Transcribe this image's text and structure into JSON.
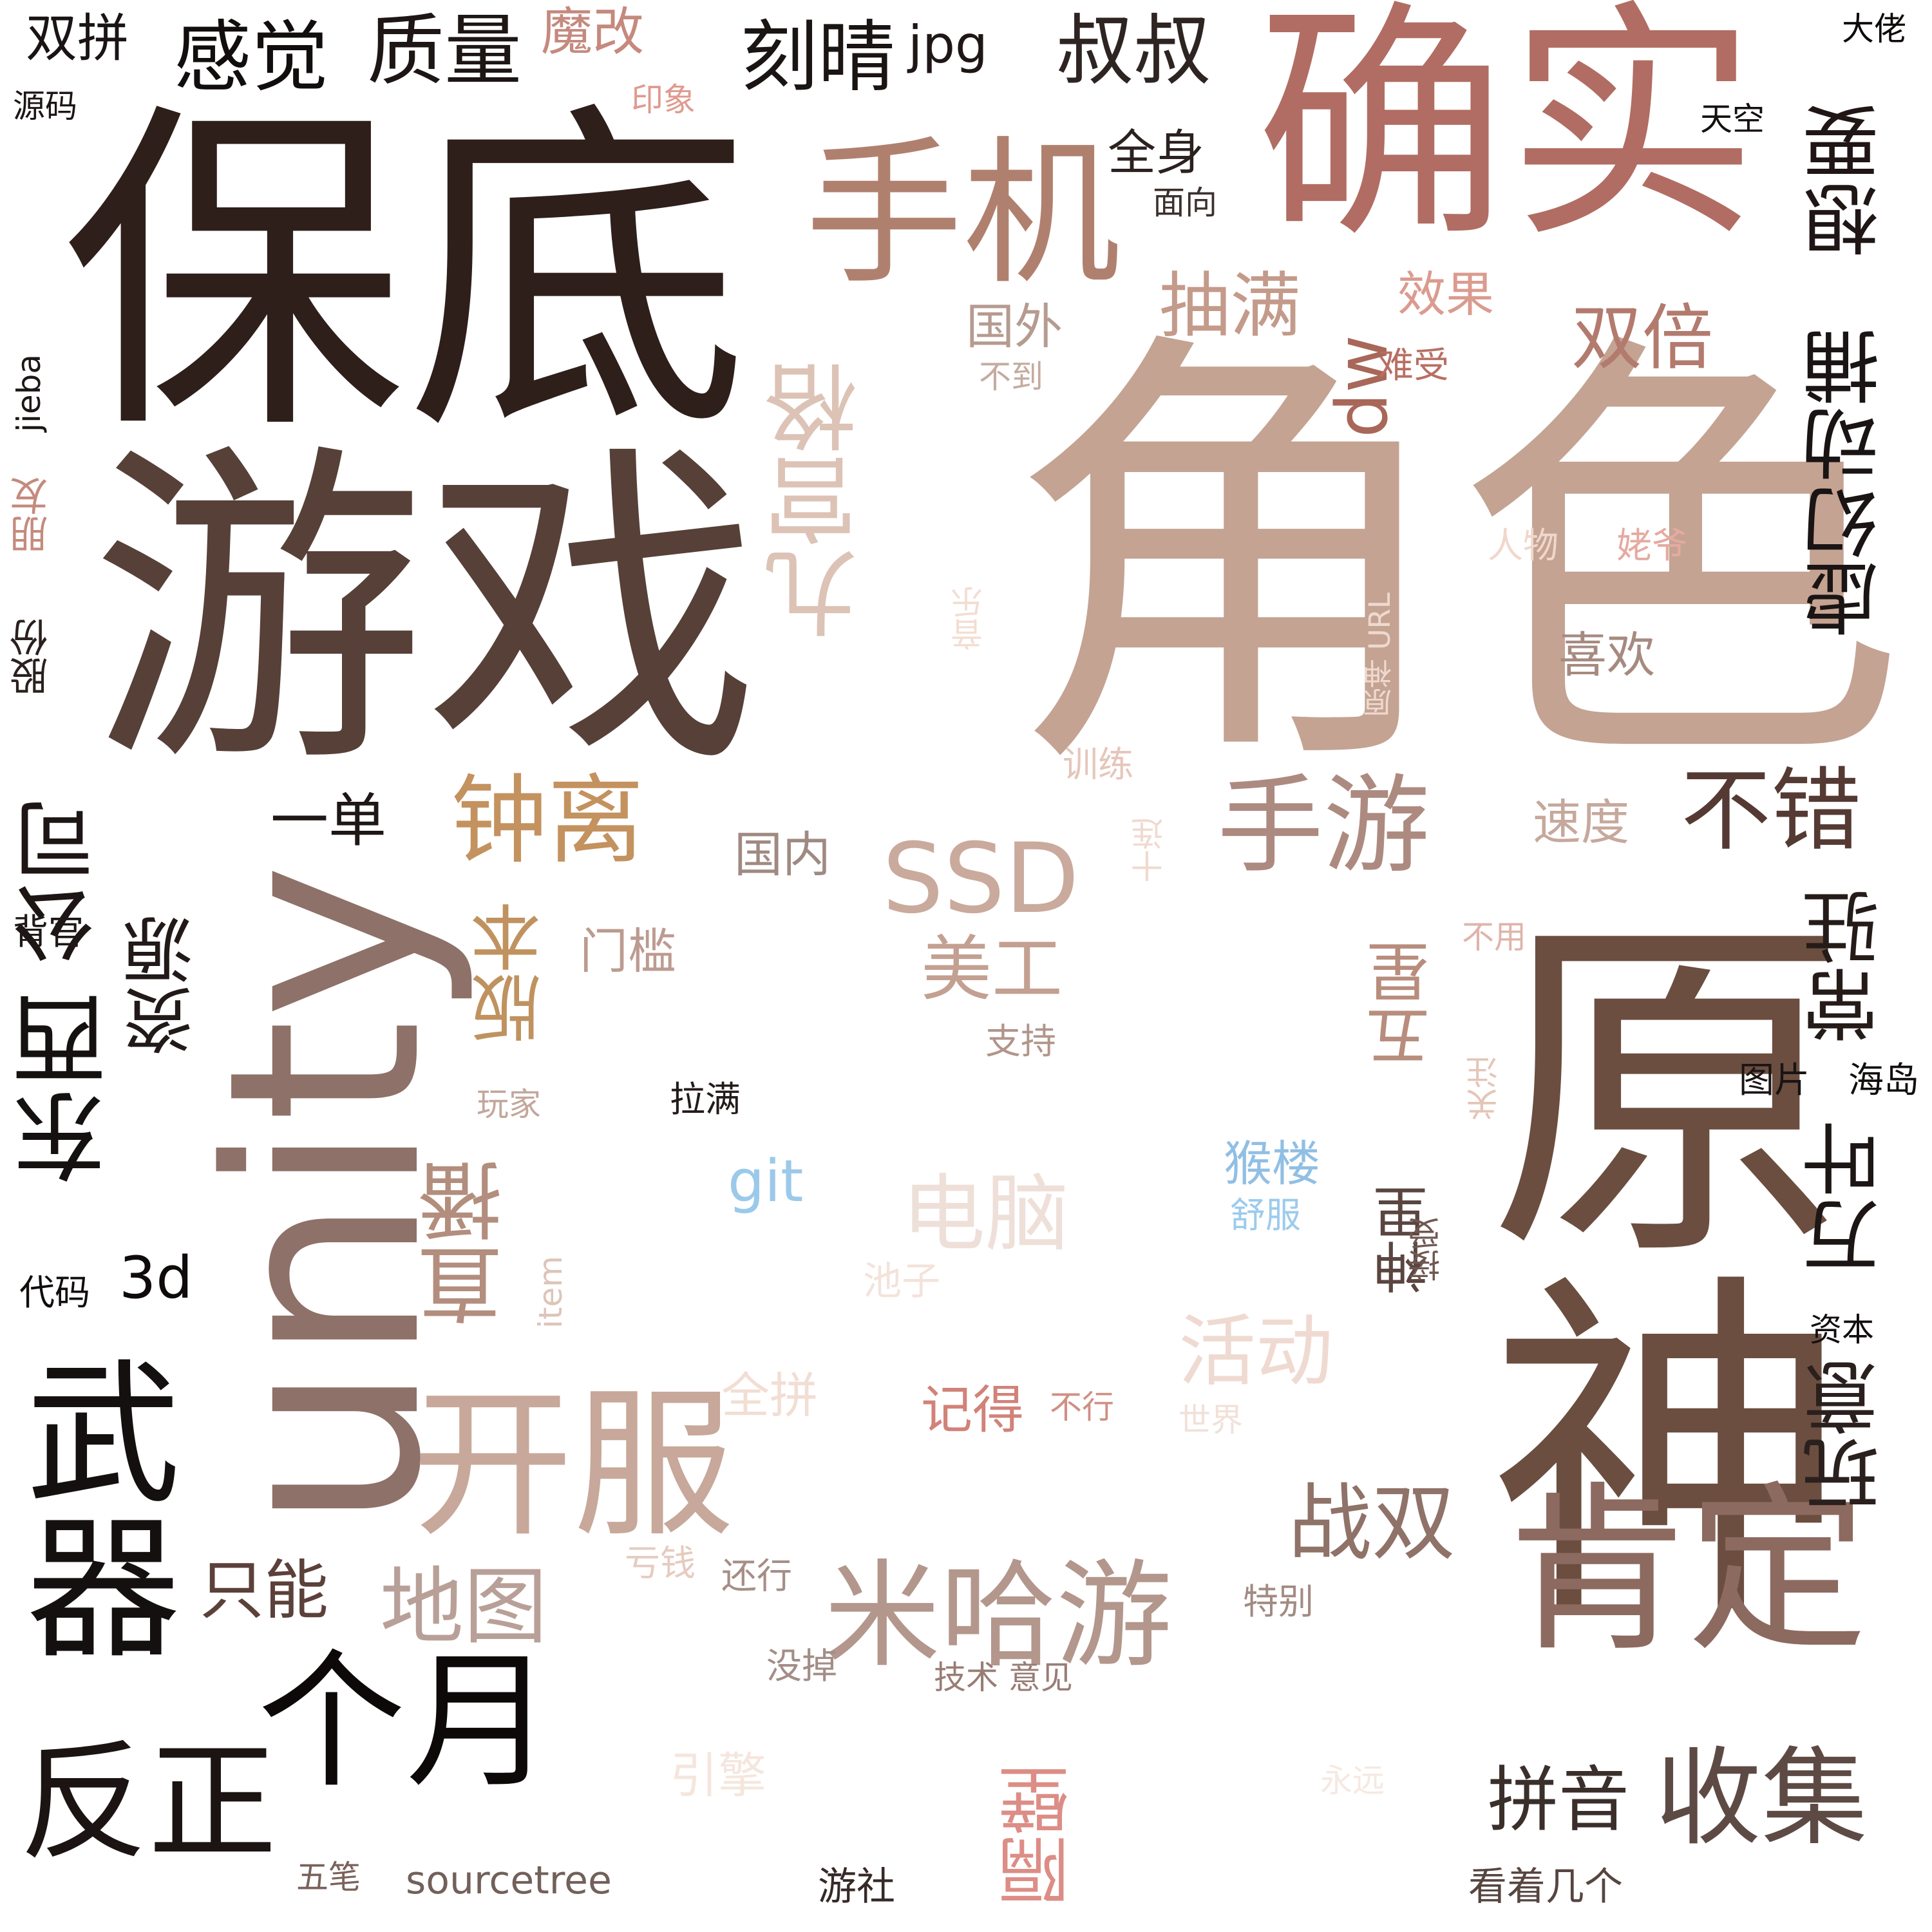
{
  "word_cloud": {
    "words": [
      {
        "text": "角色",
        "color": "#c4a393"
      },
      {
        "text": "原神",
        "color": "#6b4e40"
      },
      {
        "text": "保底",
        "color": "#2e1f1b"
      },
      {
        "text": "游戏",
        "color": "#564038"
      },
      {
        "text": "unity",
        "color": "#8e7168"
      },
      {
        "text": "确实",
        "color": "#b16d63"
      },
      {
        "text": "手机",
        "color": "#b0806f"
      },
      {
        "text": "肯定",
        "color": "#8c6a60"
      },
      {
        "text": "开服",
        "color": "#c7a89a"
      },
      {
        "text": "反正",
        "color": "#1b1412"
      },
      {
        "text": "个月",
        "color": "#0d0909"
      },
      {
        "text": "武器",
        "color": "#141010"
      },
      {
        "text": "米哈游",
        "color": "#b3978c"
      },
      {
        "text": "九宫格",
        "color": "#dcc3b6"
      },
      {
        "text": "手游",
        "color": "#ad8a80"
      },
      {
        "text": "收集",
        "color": "#5e4a44"
      },
      {
        "text": "钟离",
        "color": "#c3925f"
      },
      {
        "text": "不错",
        "color": "#553a34"
      },
      {
        "text": "SSD",
        "color": "#c9aa9c"
      },
      {
        "text": "东西",
        "color": "#151111"
      },
      {
        "text": "虚幻动捕",
        "color": "#1a1414"
      },
      {
        "text": "想要",
        "color": "#1f1615"
      },
      {
        "text": "常驻",
        "color": "#251c19"
      },
      {
        "text": "万叶",
        "color": "#1c1615"
      },
      {
        "text": "玩意",
        "color": "#2a201d"
      },
      {
        "text": "战双",
        "color": "#8f7268"
      },
      {
        "text": "直播",
        "color": "#b38d7d"
      },
      {
        "text": "地图",
        "color": "#b8a098"
      },
      {
        "text": "公司",
        "color": "#1d1615"
      },
      {
        "text": "资源",
        "color": "#221a18"
      },
      {
        "text": "版本",
        "color": "#bf925f"
      },
      {
        "text": "电脑",
        "color": "#eee0d9"
      },
      {
        "text": "活动",
        "color": "#efdad1"
      },
      {
        "text": "叔叔",
        "color": "#2e2421"
      },
      {
        "text": "刻晴",
        "color": "#1a1413"
      },
      {
        "text": "感觉",
        "color": "#120e0d"
      },
      {
        "text": "质量",
        "color": "#1d1615"
      },
      {
        "text": "双倍",
        "color": "#b37a6e"
      },
      {
        "text": "抽满",
        "color": "#c49a8a"
      },
      {
        "text": "dw",
        "color": "#a86758"
      },
      {
        "text": "美工",
        "color": "#c3a091"
      },
      {
        "text": "五星",
        "color": "#b88d7d"
      },
      {
        "text": "神里",
        "color": "#5a4540"
      },
      {
        "text": "拼音",
        "color": "#3b2f2b"
      },
      {
        "text": "只能",
        "color": "#5c403a"
      },
      {
        "text": "3d",
        "color": "#0f0b0a"
      },
      {
        "text": "双拼",
        "color": "#1a1414"
      },
      {
        "text": "魔改",
        "color": "#c5897e"
      },
      {
        "text": "jpg",
        "color": "#1e1716"
      },
      {
        "text": "隔壁",
        "color": "#dc8d86"
      },
      {
        "text": "全身",
        "color": "#2b211f"
      },
      {
        "text": "一单",
        "color": "#1e1716"
      },
      {
        "text": "git",
        "color": "#9bc9ea"
      },
      {
        "text": "记得",
        "color": "#d18279"
      },
      {
        "text": "喜欢",
        "color": "#a68a80"
      },
      {
        "text": "速度",
        "color": "#c6a89c"
      },
      {
        "text": "国内",
        "color": "#9f8a82"
      },
      {
        "text": "门槛",
        "color": "#bc9b90"
      },
      {
        "text": "国外",
        "color": "#b59b90"
      },
      {
        "text": "效果",
        "color": "#db9b8f"
      },
      {
        "text": "引擎",
        "color": "#f5e6dd"
      },
      {
        "text": "全拼",
        "color": "#f2ded4"
      },
      {
        "text": "猴楼",
        "color": "#91bfe4"
      },
      {
        "text": "大佬",
        "color": "#0e0b0a"
      },
      {
        "text": "源码",
        "color": "#1d1615"
      },
      {
        "text": "印象",
        "color": "#df9a8f"
      },
      {
        "text": "天空",
        "color": "#151010"
      },
      {
        "text": "面向",
        "color": "#3d302c"
      },
      {
        "text": "难受",
        "color": "#b86f62"
      },
      {
        "text": "不到",
        "color": "#c4aba0"
      },
      {
        "text": "jieba",
        "color": "#1c1615"
      },
      {
        "text": "朋友",
        "color": "#c58a7e"
      },
      {
        "text": "股份",
        "color": "#2a201e"
      },
      {
        "text": "人物",
        "color": "#f0d7cc"
      },
      {
        "text": "姥爷",
        "color": "#e5aaa0"
      },
      {
        "text": "音乐",
        "color": "#f3ddd2"
      },
      {
        "text": "原神 URL",
        "color": "#efd9cf"
      },
      {
        "text": "训练",
        "color": "#e5c6ba"
      },
      {
        "text": "十连",
        "color": "#f0dad0"
      },
      {
        "text": "背官",
        "color": "#1f1817"
      },
      {
        "text": "不用",
        "color": "#dfb4aa"
      },
      {
        "text": "支持",
        "color": "#b1958b"
      },
      {
        "text": "玩家",
        "color": "#c2a79b"
      },
      {
        "text": "拉满",
        "color": "#231b1a"
      },
      {
        "text": "关注",
        "color": "#e4c5b7"
      },
      {
        "text": "图片",
        "color": "#1a1414"
      },
      {
        "text": "海岛",
        "color": "#120e0d"
      },
      {
        "text": "舒服",
        "color": "#9ccbec"
      },
      {
        "text": "代码",
        "color": "#110d0c"
      },
      {
        "text": "item",
        "color": "#dec4b9"
      },
      {
        "text": "池子",
        "color": "#f3e3db"
      },
      {
        "text": "接受",
        "color": "#6f5852"
      },
      {
        "text": "资本",
        "color": "#120e0e"
      },
      {
        "text": "不行",
        "color": "#d08f84"
      },
      {
        "text": "世界",
        "color": "#f1e1d9"
      },
      {
        "text": "亏钱",
        "color": "#e6cbbf"
      },
      {
        "text": "还行",
        "color": "#a58e86"
      },
      {
        "text": "特别",
        "color": "#a28b83"
      },
      {
        "text": "没掉",
        "color": "#a38d86"
      },
      {
        "text": "技术 意见",
        "color": "#987d75"
      },
      {
        "text": "永远",
        "color": "#f6e9e1"
      },
      {
        "text": "五笔",
        "color": "#7a625b"
      },
      {
        "text": "sourcetree",
        "color": "#72605a"
      },
      {
        "text": "游社",
        "color": "#362a27"
      },
      {
        "text": "看着几个",
        "color": "#574540"
      }
    ]
  }
}
